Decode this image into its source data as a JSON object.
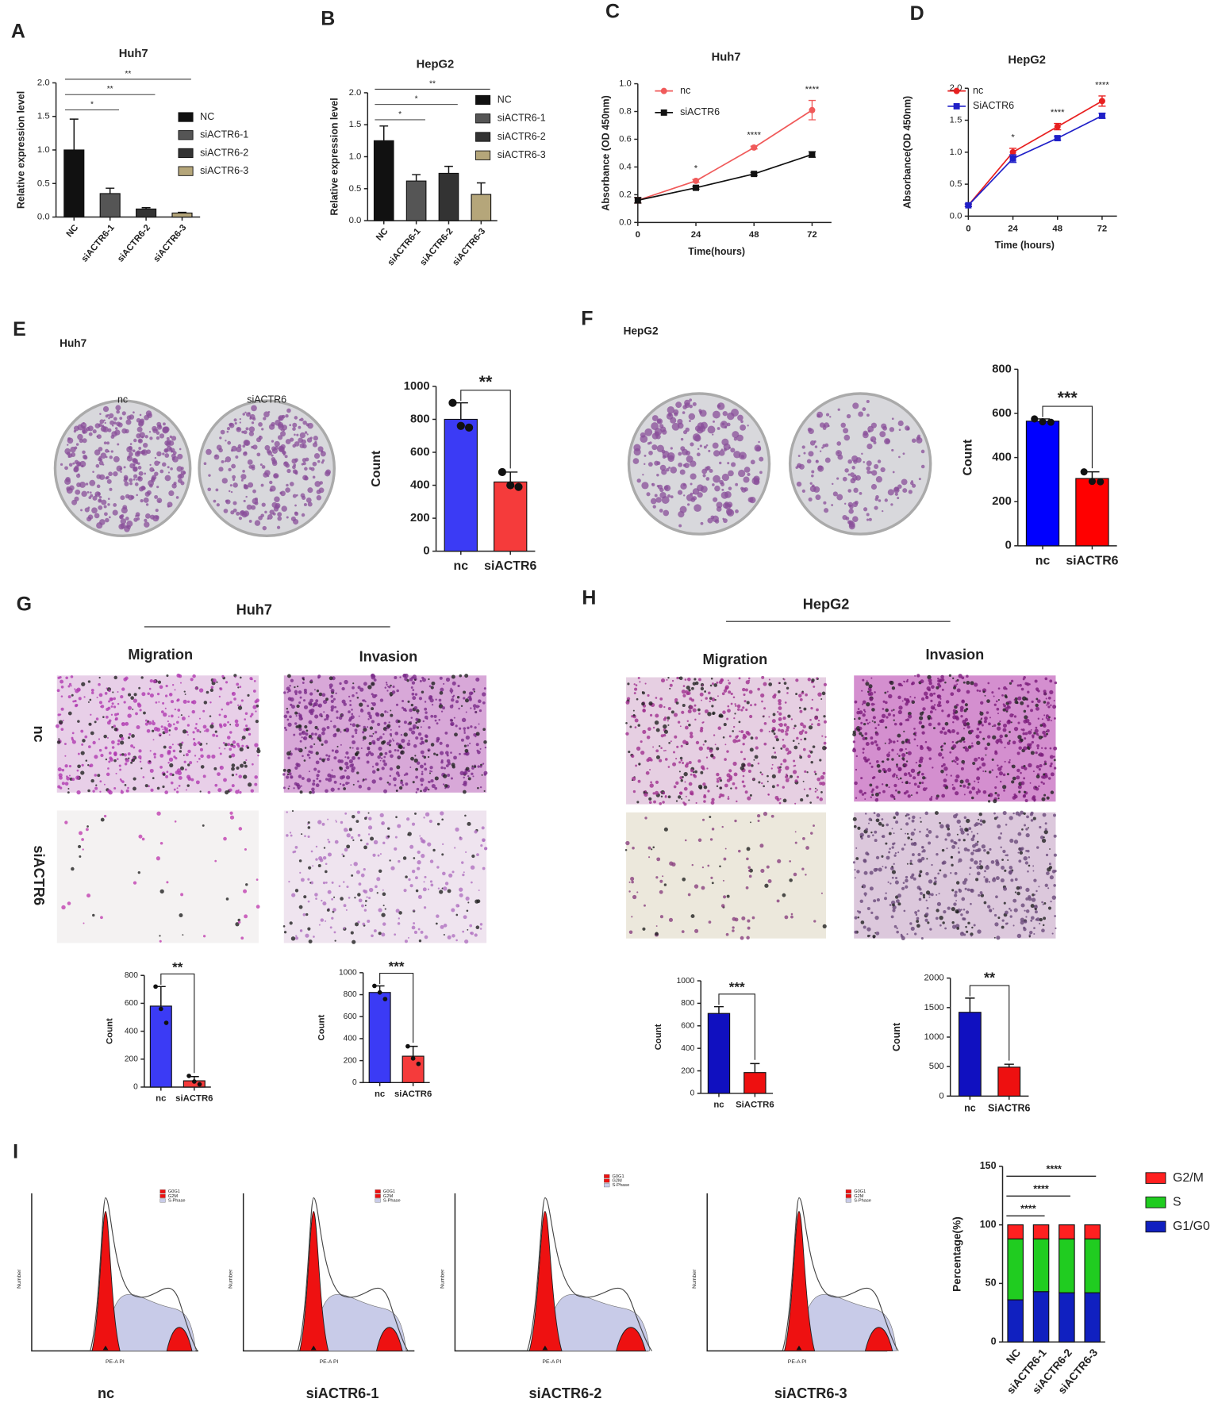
{
  "chart_data": [
    {
      "type": "bar",
      "title": "Huh7",
      "categories": [
        "NC",
        "siACTR6-1",
        "siACTR6-2",
        "siACTR6-3"
      ],
      "values": [
        1.0,
        0.35,
        0.12,
        0.06
      ],
      "errors": [
        0.46,
        0.08,
        0.02,
        0.01
      ],
      "colors": [
        "#111111",
        "#555555",
        "#333333",
        "#b5a67a"
      ],
      "ylabel": "Relative expression level",
      "ylim": [
        0,
        2
      ],
      "yticks": [
        {
          "value": 0,
          "label": "0.0"
        },
        {
          "value": 0.5,
          "label": "0.5"
        },
        {
          "value": 1,
          "label": "1.0"
        },
        {
          "value": 1.5,
          "label": "1.5"
        },
        {
          "value": 2,
          "label": "2.0"
        }
      ],
      "legend": true,
      "annotations": [
        "*",
        "**",
        "**"
      ]
    },
    {
      "type": "bar",
      "title": "HepG2",
      "categories": [
        "NC",
        "siACTR6-1",
        "siACTR6-2",
        "siACTR6-3"
      ],
      "values": [
        1.25,
        0.62,
        0.74,
        0.41
      ],
      "errors": [
        0.23,
        0.1,
        0.11,
        0.18
      ],
      "colors": [
        "#111111",
        "#555555",
        "#333333",
        "#b5a67a"
      ],
      "ylabel": "Relative expression level",
      "ylim": [
        0,
        2
      ],
      "yticks": [
        {
          "value": 0,
          "label": "0.0"
        },
        {
          "value": 0.5,
          "label": "0.5"
        },
        {
          "value": 1,
          "label": "1.0"
        },
        {
          "value": 1.5,
          "label": "1.5"
        },
        {
          "value": 2,
          "label": "2.0"
        }
      ],
      "legend": true,
      "annotations": [
        "*",
        "*",
        "**"
      ]
    },
    {
      "type": "line",
      "title": "Huh7",
      "x": [
        0,
        24,
        48,
        72
      ],
      "xlim": [
        0,
        80
      ],
      "xticks": [
        0,
        24,
        48,
        72
      ],
      "xlabel": "Time(hours)",
      "ylabel": "Absorbance (OD 450nm)",
      "ylim": [
        0,
        1
      ],
      "yticks": [
        {
          "value": 0,
          "label": "0.0"
        },
        {
          "value": 0.2,
          "label": "0.2"
        },
        {
          "value": 0.4,
          "label": "0.4"
        },
        {
          "value": 0.6,
          "label": "0.6"
        },
        {
          "value": 0.8,
          "label": "0.8"
        },
        {
          "value": 1,
          "label": "1.0"
        }
      ],
      "series": [
        {
          "name": "nc",
          "color": "#f05a5a",
          "marker": "circle",
          "values": [
            0.16,
            0.3,
            0.54,
            0.81
          ],
          "errors": [
            0.02,
            0.01,
            0.01,
            0.07
          ]
        },
        {
          "name": "siACTR6",
          "color": "#111111",
          "marker": "square",
          "values": [
            0.16,
            0.25,
            0.35,
            0.49
          ],
          "errors": [
            0.02,
            0.01,
            0.01,
            0.02
          ]
        }
      ],
      "annotations": [
        "*",
        "****",
        "****"
      ]
    },
    {
      "type": "line",
      "title": "HepG2",
      "x": [
        0,
        24,
        48,
        72
      ],
      "xlim": [
        0,
        80
      ],
      "xticks": [
        0,
        24,
        48,
        72
      ],
      "xlabel": "Time (hours)",
      "ylabel": "Absorbance(OD 450nm)",
      "ylim": [
        0,
        2
      ],
      "yticks": [
        {
          "value": 0,
          "label": "0.0"
        },
        {
          "value": 0.5,
          "label": "0.5"
        },
        {
          "value": 1,
          "label": "1.0"
        },
        {
          "value": 1.5,
          "label": "1.5"
        },
        {
          "value": 2,
          "label": "2.0"
        }
      ],
      "series": [
        {
          "name": "nc",
          "color": "#e82020",
          "marker": "circle",
          "values": [
            0.17,
            1.0,
            1.4,
            1.8
          ],
          "errors": [
            0.02,
            0.06,
            0.05,
            0.08
          ]
        },
        {
          "name": "SiACTR6",
          "color": "#2020c8",
          "marker": "square",
          "values": [
            0.17,
            0.9,
            1.22,
            1.57
          ],
          "errors": [
            0.02,
            0.06,
            0.03,
            0.04
          ]
        }
      ],
      "annotations": [
        "*",
        "****",
        "****"
      ]
    },
    {
      "type": "bar",
      "categories": [
        "nc",
        "siACTR6"
      ],
      "values": [
        800,
        420
      ],
      "errors": [
        100,
        60
      ],
      "points": [
        [
          900,
          760,
          750
        ],
        [
          480,
          400,
          390
        ]
      ],
      "colors": [
        "#3b3bf5",
        "#f53b3b"
      ],
      "ylabel": "Count",
      "ylim": [
        0,
        1000
      ],
      "yticks": [
        0,
        200,
        400,
        600,
        800,
        1000
      ],
      "annotations": [
        "**"
      ]
    },
    {
      "type": "bar",
      "categories": [
        "nc",
        "siACTR6"
      ],
      "values": [
        565,
        305
      ],
      "errors": [
        10,
        30
      ],
      "points": [
        [
          575,
          562,
          560
        ],
        [
          335,
          292,
          290
        ]
      ],
      "colors": [
        "#0000ff",
        "#ff0000"
      ],
      "ylabel": "Count",
      "ylim": [
        0,
        800
      ],
      "yticks": [
        0,
        200,
        400,
        600,
        800
      ],
      "annotations": [
        "***"
      ]
    },
    {
      "type": "bar",
      "categories": [
        "nc",
        "siACTR6"
      ],
      "values": [
        580,
        45
      ],
      "errors": [
        140,
        30
      ],
      "points": [
        [
          720,
          560,
          460
        ],
        [
          80,
          40,
          20
        ]
      ],
      "colors": [
        "#3b3bf5",
        "#f53b3b"
      ],
      "ylabel": "Count",
      "ylim": [
        0,
        800
      ],
      "yticks": [
        0,
        200,
        400,
        600,
        800
      ],
      "annotations": [
        "**"
      ]
    },
    {
      "type": "bar",
      "categories": [
        "nc",
        "siACTR6"
      ],
      "values": [
        820,
        240
      ],
      "errors": [
        60,
        90
      ],
      "points": [
        [
          880,
          820,
          760
        ],
        [
          330,
          220,
          170
        ]
      ],
      "colors": [
        "#3b3bf5",
        "#f53b3b"
      ],
      "ylabel": "Count",
      "ylim": [
        0,
        1000
      ],
      "yticks": [
        0,
        200,
        400,
        600,
        800,
        1000
      ],
      "annotations": [
        "***"
      ]
    },
    {
      "type": "bar",
      "categories": [
        "nc",
        "SiACTR6"
      ],
      "values": [
        710,
        185
      ],
      "errors": [
        60,
        80
      ],
      "colors": [
        "#1010c0",
        "#ee1010"
      ],
      "ylabel": "Count",
      "ylim": [
        0,
        1000
      ],
      "yticks": [
        0,
        200,
        400,
        600,
        800,
        1000
      ],
      "annotations": [
        "***"
      ]
    },
    {
      "type": "bar",
      "categories": [
        "nc",
        "SiACTR6"
      ],
      "values": [
        1420,
        490
      ],
      "errors": [
        240,
        50
      ],
      "colors": [
        "#1010c0",
        "#ee1010"
      ],
      "ylabel": "Count",
      "ylim": [
        0,
        2000
      ],
      "yticks": [
        0,
        500,
        1000,
        1500,
        2000
      ],
      "annotations": [
        "**"
      ]
    },
    {
      "type": "stacked",
      "categories": [
        "NC",
        "siACTR6-1",
        "siACTR6-2",
        "siACTR6-3"
      ],
      "ylabel": "Percentage(%)",
      "ylim": [
        0,
        150
      ],
      "yticks": [
        0,
        50,
        100,
        150
      ],
      "series": [
        {
          "name": "G2/M",
          "color": "#ff2020",
          "values": [
            12,
            12,
            12,
            12
          ]
        },
        {
          "name": "S",
          "color": "#20cc20",
          "values": [
            52,
            45,
            46,
            46
          ]
        },
        {
          "name": "G1/G0",
          "color": "#1020c0",
          "values": [
            36,
            43,
            42,
            42
          ]
        }
      ],
      "annotations": [
        "****",
        "****",
        "****"
      ]
    }
  ],
  "figure": {
    "panels": [
      "A",
      "B",
      "C",
      "D",
      "E",
      "F",
      "G",
      "H",
      "I"
    ],
    "E_panel": {
      "title": "Huh7",
      "plates": [
        "nc",
        "siACTR6"
      ]
    },
    "F_panel": {
      "title": "HepG2"
    },
    "G_panel": {
      "title": "Huh7",
      "columns": [
        "Migration",
        "Invasion"
      ],
      "rows": [
        "nc",
        "siACTR6"
      ]
    },
    "H_panel": {
      "title": "HepG2",
      "columns": [
        "Migration",
        "Invasion"
      ]
    },
    "I_panel": {
      "samples": [
        "nc",
        "siACTR6-1",
        "siACTR6-2",
        "siACTR6-3"
      ],
      "flow_legend": [
        "G0G1",
        "G2M",
        "S-Phase"
      ],
      "x_axis": "PE-A PI",
      "y_axis": "Number"
    }
  }
}
